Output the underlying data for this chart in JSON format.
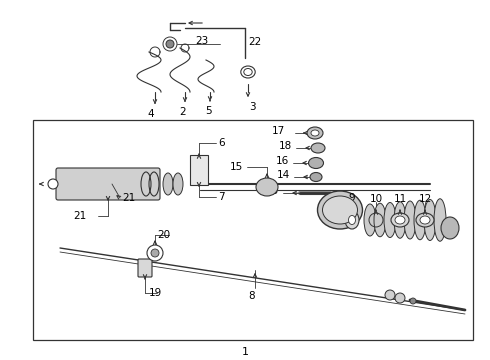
{
  "bg_color": "#ffffff",
  "line_color": "#333333",
  "box_color": "#ffffff",
  "fig_bg": "#d8d8d8",
  "fs_label": 7.5
}
